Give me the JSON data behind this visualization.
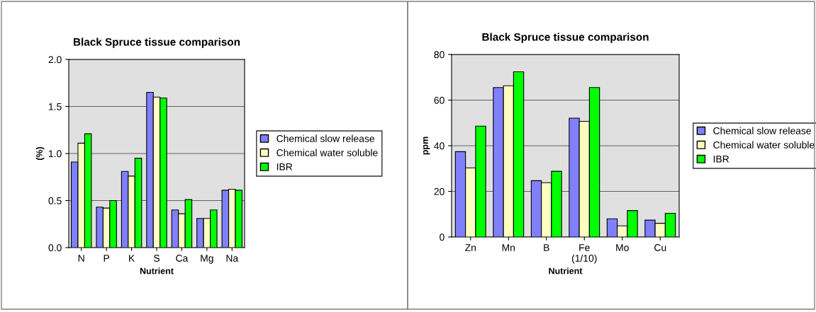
{
  "chart_data": [
    {
      "type": "bar",
      "title": "Black Spruce tissue comparison",
      "xlabel": "Nutrient",
      "ylabel": "(%)",
      "categories": [
        "N",
        "P",
        "K",
        "S",
        "Ca",
        "Mg",
        "Na"
      ],
      "series": [
        {
          "name": "Chemical slow release",
          "color": "#8080ff",
          "values": [
            0.91,
            0.43,
            0.81,
            1.65,
            0.4,
            0.31,
            0.61
          ]
        },
        {
          "name": "Chemical water soluble",
          "color": "#ffffc0",
          "values": [
            1.11,
            0.42,
            0.76,
            1.6,
            0.36,
            0.31,
            0.62
          ]
        },
        {
          "name": "IBR",
          "color": "#00ff00",
          "values": [
            1.21,
            0.5,
            0.95,
            1.59,
            0.51,
            0.4,
            0.61
          ]
        }
      ],
      "ylim": [
        0,
        2.0
      ],
      "yticks": [
        {
          "value": 0,
          "label": "0.0"
        },
        {
          "value": 0.5,
          "label": "0.5"
        },
        {
          "value": 1.0,
          "label": "1.0"
        },
        {
          "value": 1.5,
          "label": "1.5"
        },
        {
          "value": 2.0,
          "label": "2.0"
        }
      ],
      "grid": "y",
      "legend": "right"
    },
    {
      "type": "bar",
      "title": "Black Spruce tissue comparison",
      "xlabel": "Nutrient",
      "ylabel": "ppm",
      "categories": [
        "Zn",
        "Mn",
        "B",
        "Fe\n(1/10)",
        "Mo",
        "Cu"
      ],
      "series": [
        {
          "name": "Chemical slow release",
          "color": "#8080ff",
          "values": [
            37.4,
            65.5,
            24.7,
            52.1,
            8.0,
            7.4
          ]
        },
        {
          "name": "Chemical water soluble",
          "color": "#ffffc0",
          "values": [
            30.3,
            66.3,
            23.8,
            50.7,
            4.9,
            6.0
          ]
        },
        {
          "name": "IBR",
          "color": "#00ff00",
          "values": [
            48.6,
            72.4,
            28.8,
            65.5,
            11.6,
            10.4
          ]
        }
      ],
      "ylim": [
        0,
        80
      ],
      "yticks": [
        0,
        20,
        40,
        60,
        80
      ],
      "grid": "y",
      "legend": "right"
    }
  ]
}
